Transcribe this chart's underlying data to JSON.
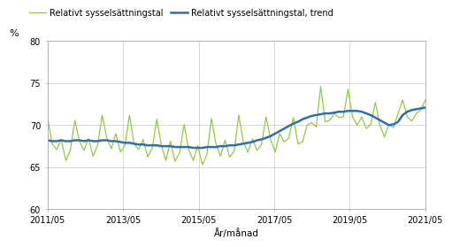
{
  "ylabel": "%",
  "xlabel": "År/månad",
  "ylim": [
    60,
    80
  ],
  "yticks": [
    60,
    65,
    70,
    75,
    80
  ],
  "legend1": "Relativt sysselsättningstal",
  "legend2": "Relativt sysselsättningstal, trend",
  "line1_color": "#8dc63f",
  "line2_color": "#2e6db4",
  "xtick_labels": [
    "2011/05",
    "2013/05",
    "2015/05",
    "2017/05",
    "2019/05",
    "2021/05"
  ],
  "raw_data": [
    70.9,
    67.8,
    67.1,
    68.3,
    65.8,
    67.0,
    70.6,
    68.1,
    67.0,
    68.4,
    66.3,
    67.6,
    71.2,
    68.5,
    67.2,
    69.0,
    66.8,
    67.6,
    71.2,
    67.8,
    67.1,
    68.3,
    66.2,
    67.3,
    70.7,
    67.6,
    65.8,
    68.1,
    65.7,
    66.7,
    70.1,
    67.1,
    65.8,
    67.6,
    65.3,
    66.5,
    70.8,
    67.8,
    66.3,
    68.2,
    66.2,
    66.9,
    71.2,
    68.0,
    66.8,
    68.4,
    67.0,
    67.7,
    71.0,
    68.3,
    66.8,
    69.0,
    68.0,
    68.5,
    70.9,
    67.8,
    68.0,
    70.0,
    70.3,
    69.8,
    74.6,
    70.4,
    70.6,
    71.4,
    70.9,
    71.0,
    74.3,
    71.0,
    70.0,
    71.0,
    69.6,
    70.1,
    72.7,
    70.0,
    68.6,
    70.1,
    69.7,
    71.4,
    73.0,
    71.0,
    70.5,
    71.4,
    71.8,
    73.0
  ],
  "trend_data": [
    68.2,
    68.1,
    68.1,
    68.2,
    68.1,
    68.1,
    68.2,
    68.2,
    68.1,
    68.2,
    68.1,
    68.1,
    68.2,
    68.2,
    68.1,
    68.1,
    68.0,
    67.9,
    67.9,
    67.8,
    67.7,
    67.7,
    67.6,
    67.6,
    67.6,
    67.5,
    67.5,
    67.5,
    67.4,
    67.4,
    67.4,
    67.4,
    67.3,
    67.3,
    67.3,
    67.4,
    67.4,
    67.4,
    67.5,
    67.5,
    67.6,
    67.6,
    67.7,
    67.8,
    67.9,
    68.0,
    68.2,
    68.3,
    68.5,
    68.7,
    69.0,
    69.3,
    69.6,
    69.9,
    70.2,
    70.4,
    70.7,
    70.9,
    71.1,
    71.2,
    71.3,
    71.4,
    71.4,
    71.5,
    71.6,
    71.6,
    71.7,
    71.7,
    71.7,
    71.6,
    71.4,
    71.2,
    70.9,
    70.6,
    70.3,
    70.0,
    70.1,
    70.4,
    71.2,
    71.6,
    71.8,
    71.9,
    72.0,
    72.1
  ]
}
